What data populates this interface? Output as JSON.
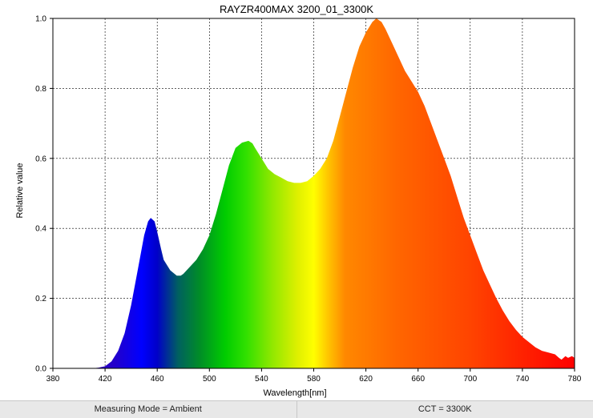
{
  "chart_data": {
    "type": "area",
    "title": "RAYZR400MAX 3200_01_3300K",
    "xlabel": "Wavelength[nm]",
    "ylabel": "Relative value",
    "xlim": [
      380,
      780
    ],
    "ylim": [
      0,
      1.0
    ],
    "xticks": [
      "380",
      "420",
      "460",
      "500",
      "540",
      "580",
      "620",
      "660",
      "700",
      "740",
      "780"
    ],
    "yticks": [
      "0.0",
      "0.2",
      "0.4",
      "0.6",
      "0.8",
      "1.0"
    ],
    "grid": true,
    "fill": "visible-spectrum gradient",
    "series": [
      {
        "x": [
          380,
          410,
          415,
          420,
          425,
          430,
          435,
          440,
          445,
          450,
          453,
          455,
          458,
          460,
          463,
          465,
          470,
          475,
          478,
          480,
          485,
          490,
          495,
          500,
          505,
          510,
          515,
          520,
          525,
          530,
          533,
          535,
          540,
          545,
          550,
          555,
          560,
          565,
          570,
          575,
          580,
          585,
          590,
          595,
          600,
          605,
          610,
          615,
          620,
          625,
          628,
          630,
          632,
          635,
          640,
          645,
          650,
          655,
          660,
          665,
          670,
          675,
          680,
          685,
          690,
          695,
          700,
          705,
          710,
          715,
          720,
          725,
          730,
          735,
          740,
          745,
          750,
          755,
          760,
          765,
          768,
          770,
          773,
          775,
          778,
          780
        ],
        "y": [
          0,
          0,
          0.002,
          0.006,
          0.02,
          0.05,
          0.1,
          0.18,
          0.28,
          0.38,
          0.42,
          0.43,
          0.42,
          0.39,
          0.34,
          0.31,
          0.28,
          0.265,
          0.265,
          0.27,
          0.29,
          0.31,
          0.34,
          0.38,
          0.44,
          0.51,
          0.58,
          0.63,
          0.645,
          0.65,
          0.643,
          0.63,
          0.6,
          0.57,
          0.555,
          0.545,
          0.535,
          0.53,
          0.53,
          0.535,
          0.55,
          0.57,
          0.6,
          0.65,
          0.72,
          0.79,
          0.86,
          0.92,
          0.96,
          0.99,
          1.0,
          0.995,
          0.99,
          0.97,
          0.93,
          0.89,
          0.85,
          0.82,
          0.79,
          0.75,
          0.7,
          0.65,
          0.6,
          0.55,
          0.49,
          0.43,
          0.38,
          0.33,
          0.28,
          0.24,
          0.2,
          0.165,
          0.135,
          0.11,
          0.09,
          0.075,
          0.06,
          0.05,
          0.045,
          0.04,
          0.03,
          0.025,
          0.035,
          0.03,
          0.035,
          0.03
        ]
      }
    ]
  },
  "status": {
    "measuring_mode": "Measuring Mode = Ambient",
    "cct": "CCT = 3300K"
  },
  "colors": {
    "frame": "#000000",
    "grid": "#000000",
    "status_bg": "#e8e8e8"
  }
}
